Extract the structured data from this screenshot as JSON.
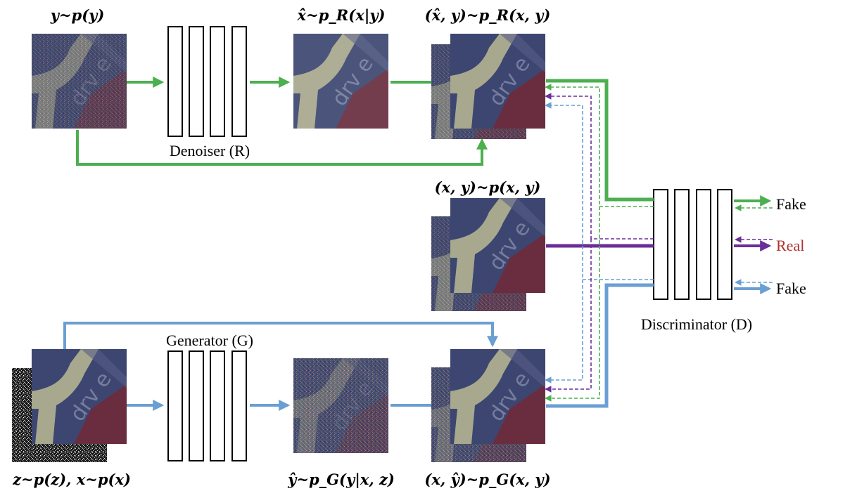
{
  "labels": {
    "noisy_input": "𝒚~p(𝒚)",
    "denoised_output": "𝒙̂~p_R(𝒙|𝒚)",
    "fake_pair_r": "(𝒙̂, 𝒚)~p_R(𝒙, 𝒚)",
    "real_pair": "(𝒙, 𝒚)~p(𝒙, 𝒚)",
    "generator_input": "𝒛~p(𝒛), 𝒙~p(𝒙)",
    "generated_noisy": "𝒚̂~p_G(𝒚|𝒙, 𝒛)",
    "fake_pair_g": "(𝒙, 𝒚̂)~p_G(𝒙, 𝒚)"
  },
  "blocks": {
    "denoiser": "Denoiser (R)",
    "generator": "Generator (G)",
    "discriminator": "Discriminator (D)"
  },
  "outputs": {
    "fake_top": "Fake",
    "real": "Real",
    "fake_bottom": "Fake"
  },
  "colors": {
    "denoiser_path": "#4caf50",
    "generator_path": "#6a9fd4",
    "real_path": "#6a2e9a",
    "real_text": "#b03030",
    "image_bg": "#3c4670",
    "image_light": "#a8a88e",
    "image_red": "#6e2a3a"
  }
}
